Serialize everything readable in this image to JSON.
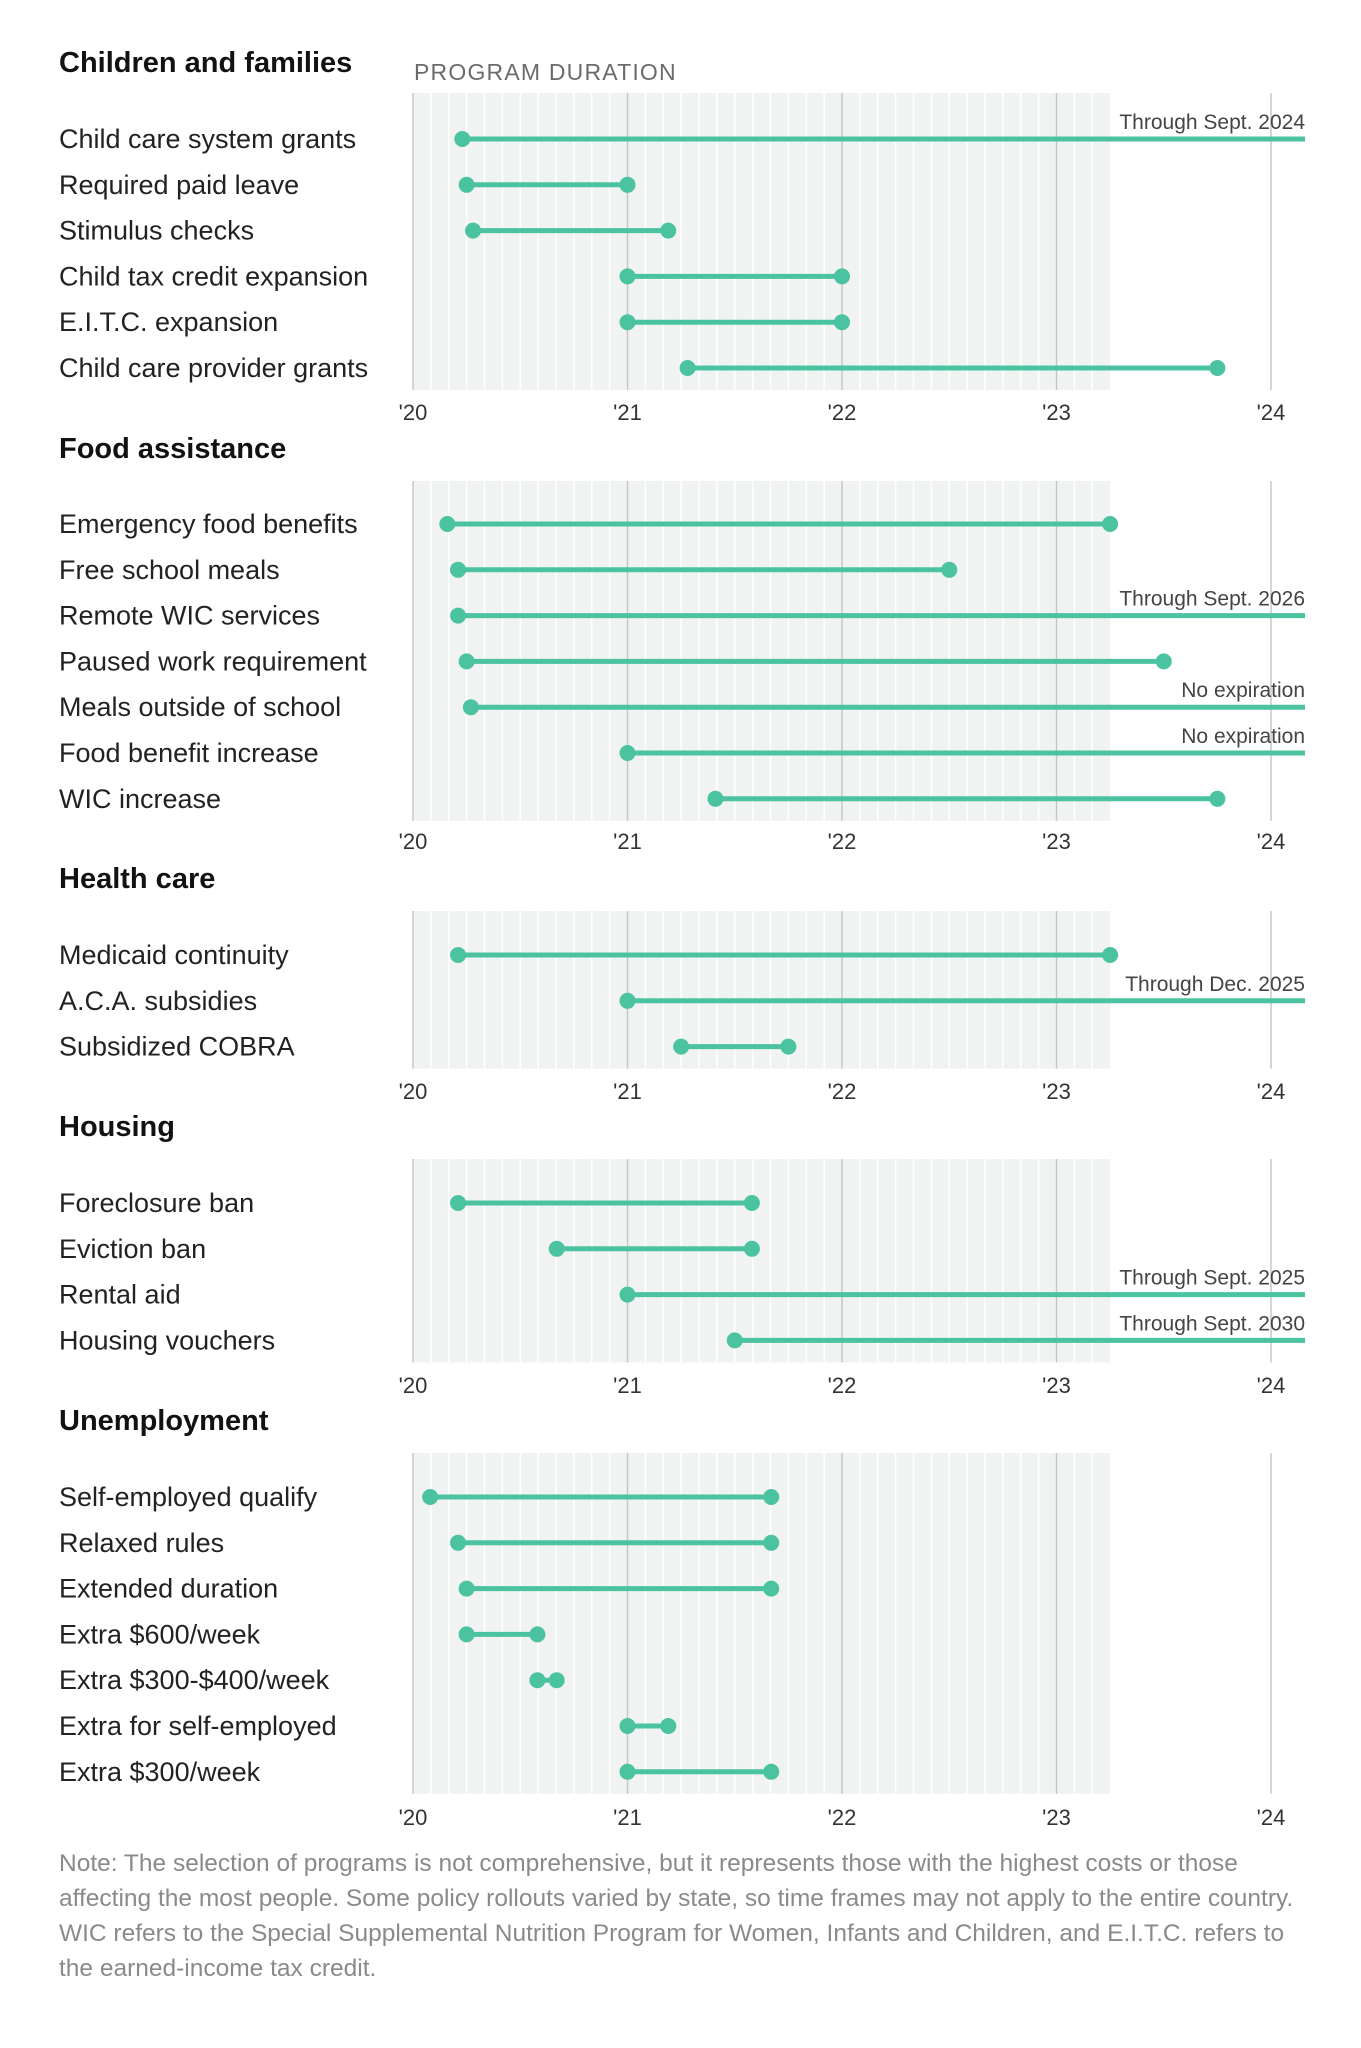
{
  "header_label": "PROGRAM DURATION",
  "note": "Note: The selection of programs is not comprehensive, but it represents those with the highest costs or those affecting the most people. Some policy rollouts varied by state, so time frames may not apply to the entire country. WIC refers to the Special Supplemental Nutrition Program for Women, Infants and Children, and E.I.T.C. refers to the earned-income tax credit.",
  "colors": {
    "bar": "#4cc3a0",
    "background_band": "#f0f3f1",
    "grid_major": "#c4c4c4",
    "grid_minor": "#ffffff",
    "text": "#222222",
    "muted_text": "#8a8a8a"
  },
  "chart_data": {
    "type": "dumbbell",
    "x_axis": {
      "ticks": [
        "'20",
        "'21",
        "'22",
        "'23",
        "'24"
      ],
      "range_years": [
        2020,
        2024.17
      ],
      "shaded_until": 2023.25
    },
    "groups": [
      {
        "title": "Children and families",
        "items": [
          {
            "label": "Child care system grants",
            "start": 2020.23,
            "end": 2024.17,
            "open_end": true,
            "annotation": "Through Sept. 2024"
          },
          {
            "label": "Required paid leave",
            "start": 2020.25,
            "end": 2021.0
          },
          {
            "label": "Stimulus checks",
            "start": 2020.28,
            "end": 2021.19
          },
          {
            "label": "Child tax credit expansion",
            "start": 2021.0,
            "end": 2022.0
          },
          {
            "label": "E.I.T.C. expansion",
            "start": 2021.0,
            "end": 2022.0
          },
          {
            "label": "Child care provider grants",
            "start": 2021.28,
            "end": 2023.75
          }
        ]
      },
      {
        "title": "Food assistance",
        "items": [
          {
            "label": "Emergency food benefits",
            "start": 2020.16,
            "end": 2023.25
          },
          {
            "label": "Free school meals",
            "start": 2020.21,
            "end": 2022.5
          },
          {
            "label": "Remote WIC services",
            "start": 2020.21,
            "end": 2024.17,
            "open_end": true,
            "annotation": "Through Sept. 2026"
          },
          {
            "label": "Paused work requirement",
            "start": 2020.25,
            "end": 2023.5
          },
          {
            "label": "Meals outside of school",
            "start": 2020.27,
            "end": 2024.17,
            "open_end": true,
            "annotation": "No expiration"
          },
          {
            "label": "Food benefit increase",
            "start": 2021.0,
            "end": 2024.17,
            "open_end": true,
            "annotation": "No expiration"
          },
          {
            "label": "WIC increase",
            "start": 2021.41,
            "end": 2023.75
          }
        ]
      },
      {
        "title": "Health care",
        "items": [
          {
            "label": "Medicaid continuity",
            "start": 2020.21,
            "end": 2023.25
          },
          {
            "label": "A.C.A. subsidies",
            "start": 2021.0,
            "end": 2024.17,
            "open_end": true,
            "annotation": "Through Dec. 2025"
          },
          {
            "label": "Subsidized COBRA",
            "start": 2021.25,
            "end": 2021.75
          }
        ]
      },
      {
        "title": "Housing",
        "items": [
          {
            "label": "Foreclosure ban",
            "start": 2020.21,
            "end": 2021.58
          },
          {
            "label": "Eviction ban",
            "start": 2020.67,
            "end": 2021.58
          },
          {
            "label": "Rental aid",
            "start": 2021.0,
            "end": 2024.17,
            "open_end": true,
            "annotation": "Through Sept. 2025"
          },
          {
            "label": "Housing vouchers",
            "start": 2021.5,
            "end": 2024.17,
            "open_end": true,
            "annotation": "Through Sept. 2030"
          }
        ]
      },
      {
        "title": "Unemployment",
        "items": [
          {
            "label": "Self-employed qualify",
            "start": 2020.08,
            "end": 2021.67
          },
          {
            "label": "Relaxed rules",
            "start": 2020.21,
            "end": 2021.67
          },
          {
            "label": "Extended duration",
            "start": 2020.25,
            "end": 2021.67
          },
          {
            "label": "Extra $600/week",
            "start": 2020.25,
            "end": 2020.58
          },
          {
            "label": "Extra $300-$400/week",
            "start": 2020.58,
            "end": 2020.67
          },
          {
            "label": "Extra for self-employed",
            "start": 2021.0,
            "end": 2021.19
          },
          {
            "label": "Extra $300/week",
            "start": 2021.0,
            "end": 2021.67
          }
        ]
      }
    ]
  }
}
